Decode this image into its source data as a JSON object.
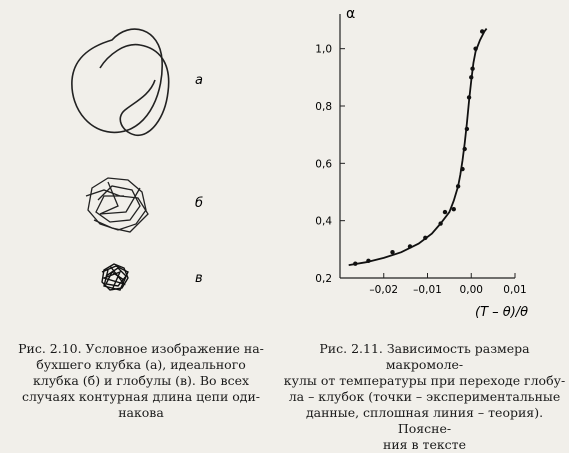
{
  "figure_left": {
    "panel_labels": [
      "а",
      "б",
      "в"
    ],
    "caption_lines": [
      "Рис. 2.10. Условное изображение на-",
      "бухшего клубка (а), идеального",
      "клубка (б) и глобулы (в). Во всех",
      "случаях контурная длина цепи оди-",
      "накова"
    ]
  },
  "figure_right": {
    "caption_lines": [
      "Рис. 2.11. Зависимость размера макромоле-",
      "кулы от температуры при переходе глобу-",
      "ла – клубок (точки – экспериментальные",
      "данные, сплошная линия – теория). Поясне-",
      "ния в тексте"
    ]
  },
  "chart_data": {
    "type": "scatter",
    "ylabel": "α",
    "xlabel": "(T – θ)/θ",
    "xlim": [
      -0.03,
      0.01
    ],
    "ylim": [
      0.2,
      1.1
    ],
    "xticks": [
      -0.02,
      -0.01,
      0.0,
      0.01
    ],
    "xtick_labels": [
      "–0,02",
      "–0,01",
      "0,00",
      "0,01"
    ],
    "yticks": [
      0.2,
      0.4,
      0.6,
      0.8,
      1.0
    ],
    "ytick_labels": [
      "0,2",
      "0,4",
      "0,6",
      "0,8",
      "1,0"
    ],
    "grid": false,
    "series": [
      {
        "kind": "points",
        "points": [
          [
            -0.0265,
            0.25
          ],
          [
            -0.0235,
            0.26
          ],
          [
            -0.018,
            0.29
          ],
          [
            -0.014,
            0.31
          ],
          [
            -0.0105,
            0.34
          ],
          [
            -0.007,
            0.39
          ],
          [
            -0.006,
            0.43
          ],
          [
            -0.004,
            0.44
          ],
          [
            -0.003,
            0.52
          ],
          [
            -0.002,
            0.58
          ],
          [
            -0.0015,
            0.65
          ],
          [
            -0.001,
            0.72
          ],
          [
            -0.0005,
            0.83
          ],
          [
            0.0,
            0.9
          ],
          [
            0.0003,
            0.93
          ],
          [
            0.001,
            1.0
          ],
          [
            0.0025,
            1.06
          ]
        ]
      },
      {
        "kind": "line",
        "points": [
          [
            -0.028,
            0.245
          ],
          [
            -0.024,
            0.255
          ],
          [
            -0.02,
            0.27
          ],
          [
            -0.016,
            0.29
          ],
          [
            -0.012,
            0.32
          ],
          [
            -0.009,
            0.355
          ],
          [
            -0.007,
            0.39
          ],
          [
            -0.005,
            0.43
          ],
          [
            -0.004,
            0.47
          ],
          [
            -0.003,
            0.52
          ],
          [
            -0.0025,
            0.56
          ],
          [
            -0.002,
            0.61
          ],
          [
            -0.0015,
            0.67
          ],
          [
            -0.001,
            0.74
          ],
          [
            -0.0005,
            0.82
          ],
          [
            0.0,
            0.89
          ],
          [
            0.0005,
            0.95
          ],
          [
            0.001,
            0.99
          ],
          [
            0.002,
            1.03
          ],
          [
            0.003,
            1.06
          ],
          [
            0.0035,
            1.07
          ]
        ]
      }
    ]
  }
}
